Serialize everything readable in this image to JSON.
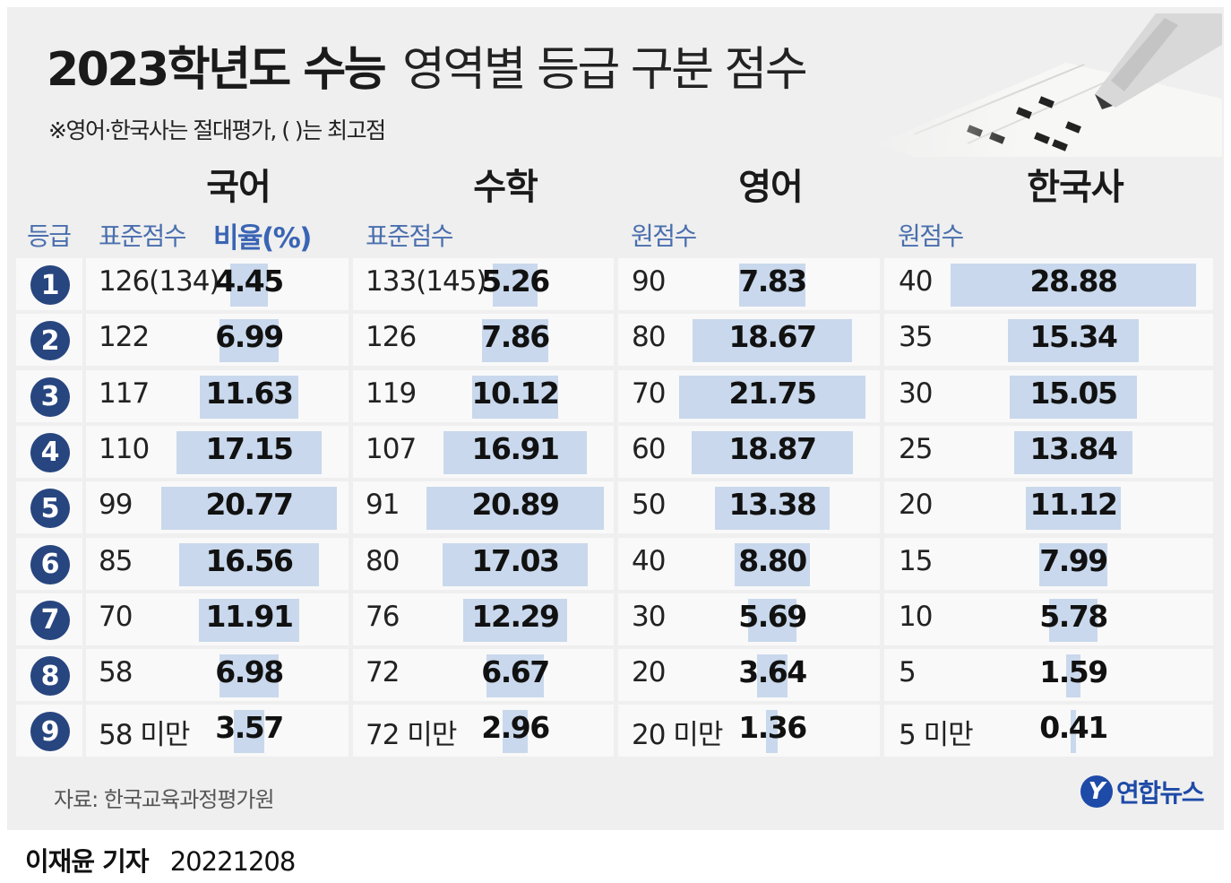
{
  "title": {
    "bold": "2023학년도 수능",
    "light": "영역별 등급 구분 점수"
  },
  "subtitle": "※영어·한국사는 절대평가, ( )는 최고점",
  "subjects": [
    "국어",
    "수학",
    "영어",
    "한국사"
  ],
  "column_headers": {
    "grade": "등급",
    "korean_score": "표준점수",
    "korean_ratio": "비율(%)",
    "math_score": "표준점수",
    "english_score": "원점수",
    "history_score": "원점수"
  },
  "accent_color": "#3a64b4",
  "bar_color": "#c9d8ec",
  "badge_color": "#27457f",
  "rows": [
    {
      "grade": "1",
      "korean": {
        "score": "126(134)",
        "pct": "4.45"
      },
      "math": {
        "score": "133(145)",
        "pct": "5.26"
      },
      "english": {
        "score": "90",
        "pct": "7.83"
      },
      "history": {
        "score": "40",
        "pct": "28.88"
      }
    },
    {
      "grade": "2",
      "korean": {
        "score": "122",
        "pct": "6.99"
      },
      "math": {
        "score": "126",
        "pct": "7.86"
      },
      "english": {
        "score": "80",
        "pct": "18.67"
      },
      "history": {
        "score": "35",
        "pct": "15.34"
      }
    },
    {
      "grade": "3",
      "korean": {
        "score": "117",
        "pct": "11.63"
      },
      "math": {
        "score": "119",
        "pct": "10.12"
      },
      "english": {
        "score": "70",
        "pct": "21.75"
      },
      "history": {
        "score": "30",
        "pct": "15.05"
      }
    },
    {
      "grade": "4",
      "korean": {
        "score": "110",
        "pct": "17.15"
      },
      "math": {
        "score": "107",
        "pct": "16.91"
      },
      "english": {
        "score": "60",
        "pct": "18.87"
      },
      "history": {
        "score": "25",
        "pct": "13.84"
      }
    },
    {
      "grade": "5",
      "korean": {
        "score": "99",
        "pct": "20.77"
      },
      "math": {
        "score": "91",
        "pct": "20.89"
      },
      "english": {
        "score": "50",
        "pct": "13.38"
      },
      "history": {
        "score": "20",
        "pct": "11.12"
      }
    },
    {
      "grade": "6",
      "korean": {
        "score": "85",
        "pct": "16.56"
      },
      "math": {
        "score": "80",
        "pct": "17.03"
      },
      "english": {
        "score": "40",
        "pct": "8.80"
      },
      "history": {
        "score": "15",
        "pct": "7.99"
      }
    },
    {
      "grade": "7",
      "korean": {
        "score": "70",
        "pct": "11.91"
      },
      "math": {
        "score": "76",
        "pct": "12.29"
      },
      "english": {
        "score": "30",
        "pct": "5.69"
      },
      "history": {
        "score": "10",
        "pct": "5.78"
      }
    },
    {
      "grade": "8",
      "korean": {
        "score": "58",
        "pct": "6.98"
      },
      "math": {
        "score": "72",
        "pct": "6.67"
      },
      "english": {
        "score": "20",
        "pct": "3.64"
      },
      "history": {
        "score": "5",
        "pct": "1.59"
      }
    },
    {
      "grade": "9",
      "korean": {
        "score": "58 미만",
        "pct": "3.57"
      },
      "math": {
        "score": "72 미만",
        "pct": "2.96"
      },
      "english": {
        "score": "20 미만",
        "pct": "1.36"
      },
      "history": {
        "score": "5 미만",
        "pct": "0.41"
      }
    }
  ],
  "source": "자료: 한국교육과정평가원",
  "logo": {
    "mark": "Y",
    "text": "연합뉴스"
  },
  "footer": {
    "reporter": "이재윤 기자",
    "date": "20221208"
  }
}
